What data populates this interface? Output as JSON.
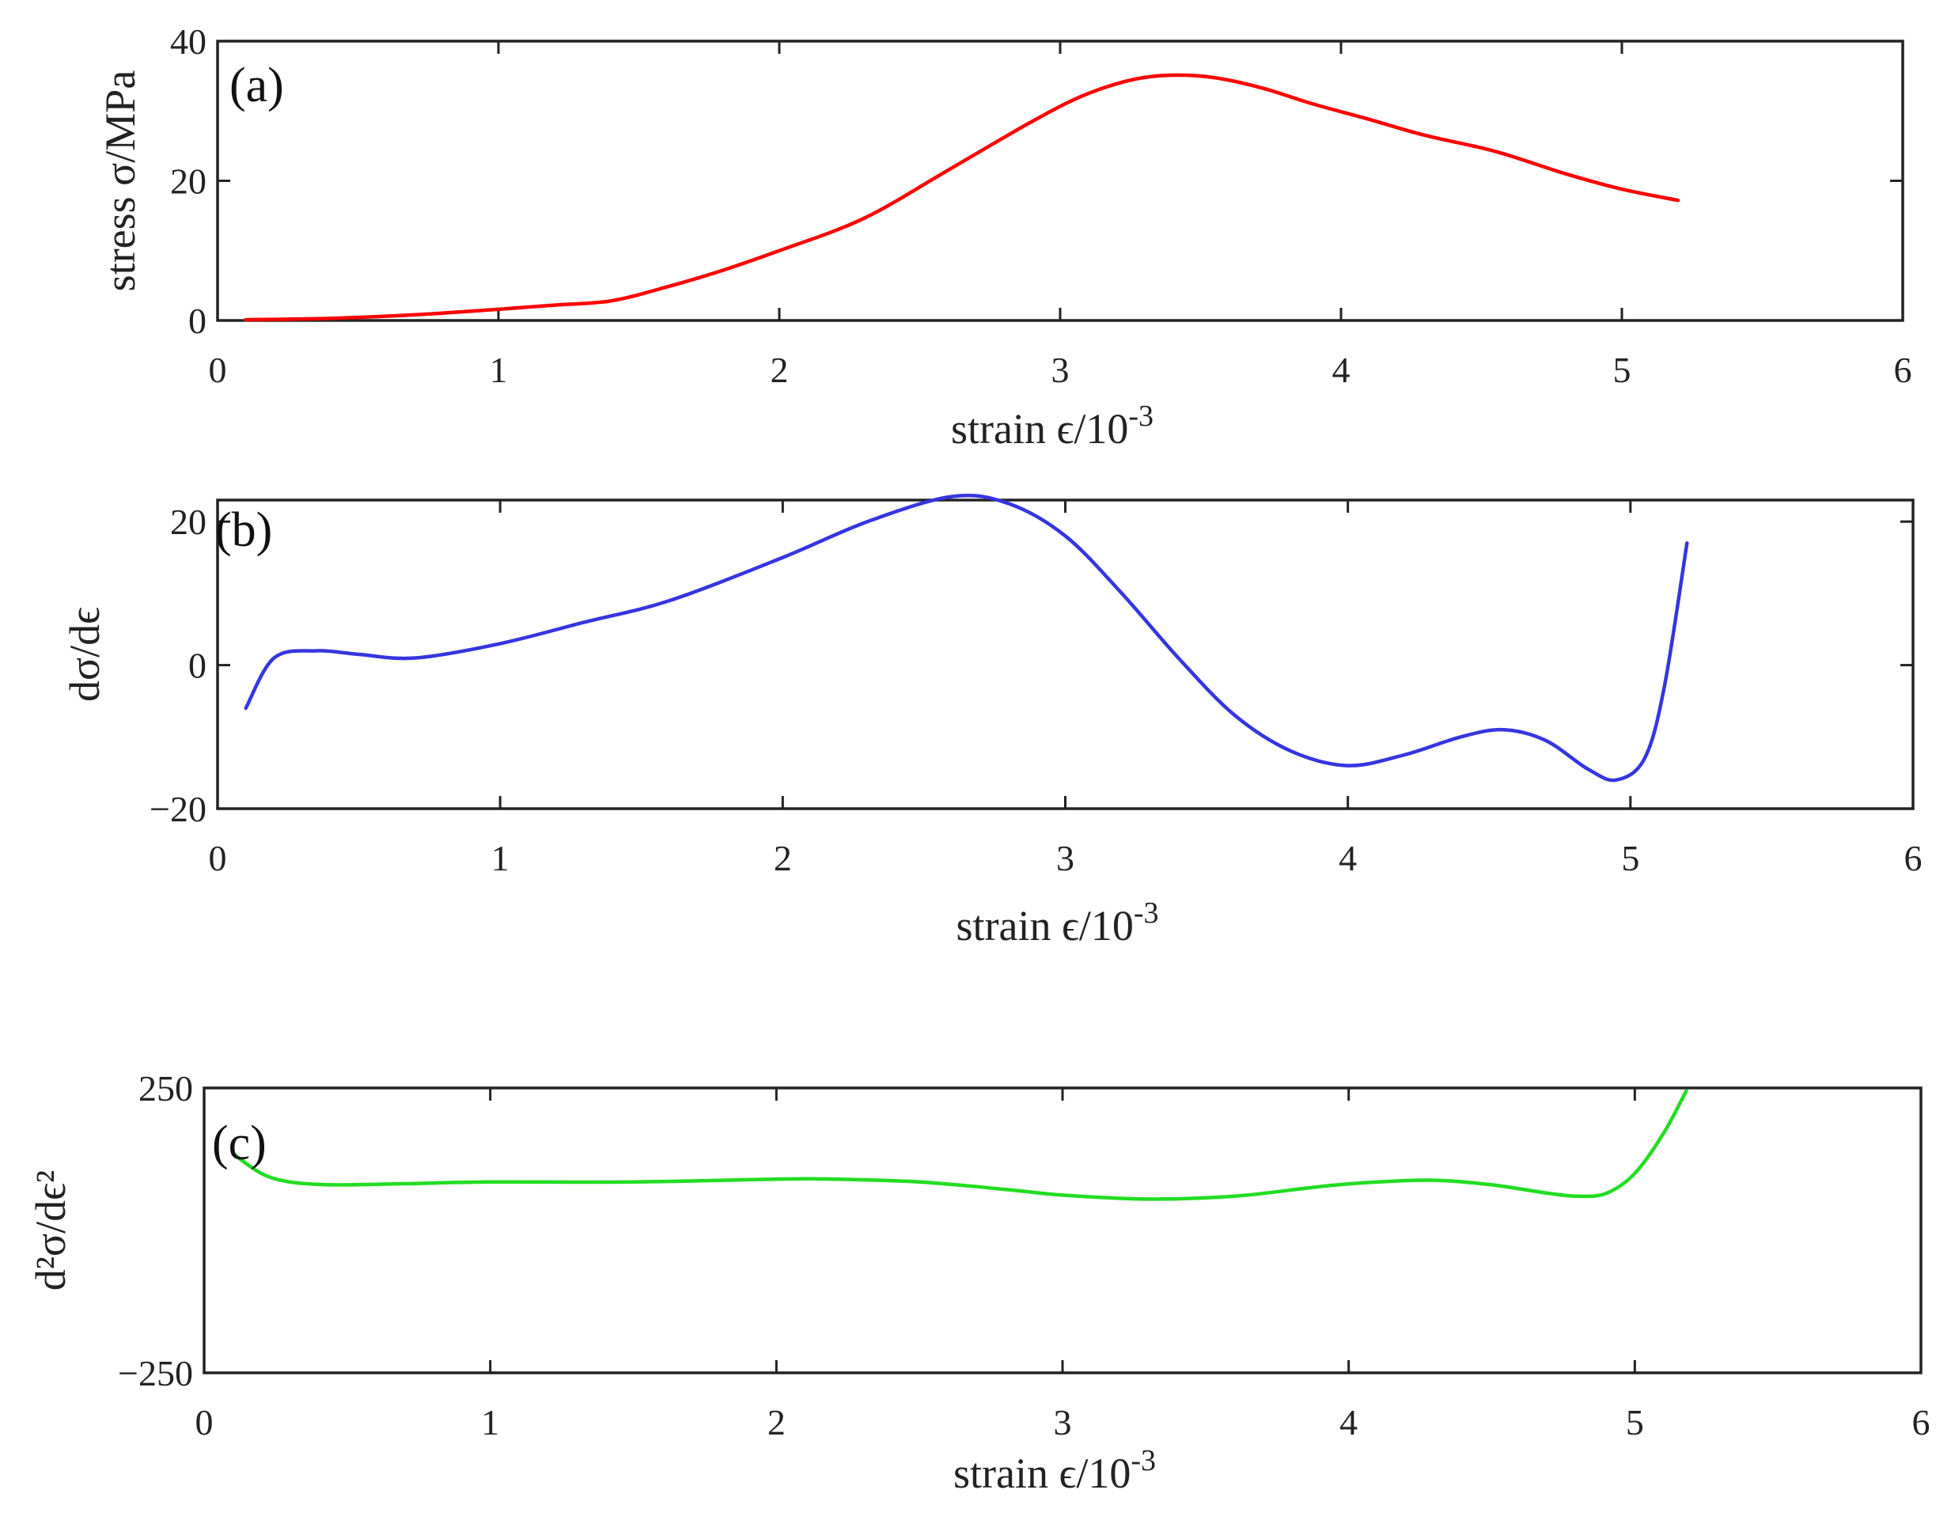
{
  "chart_data": [
    {
      "type": "line",
      "panel_label": "(a)",
      "xlabel": "strain ϵ/10",
      "xlabel_exponent": "-3",
      "ylabel": "stress σ/MPa",
      "xlim": [
        0,
        6
      ],
      "ylim": [
        0,
        40
      ],
      "xticks": [
        0,
        1,
        2,
        3,
        4,
        5,
        6
      ],
      "xtick_labels": [
        "0",
        "1",
        "2",
        "3",
        "4",
        "5",
        "6"
      ],
      "yticks": [
        0,
        20,
        40
      ],
      "ytick_labels": [
        "0",
        "20",
        "40"
      ],
      "grid": false,
      "series": [
        {
          "color": "#ff0000",
          "x": [
            0.1,
            0.4,
            0.7,
            1.0,
            1.2,
            1.4,
            1.6,
            1.8,
            2.0,
            2.3,
            2.6,
            2.9,
            3.1,
            3.3,
            3.5,
            3.7,
            3.9,
            4.1,
            4.3,
            4.55,
            4.8,
            5.0,
            5.2
          ],
          "y": [
            0.1,
            0.3,
            0.8,
            1.6,
            2.2,
            2.8,
            4.8,
            7.2,
            10.0,
            14.6,
            21.5,
            28.5,
            32.5,
            34.8,
            35.0,
            33.5,
            31.0,
            28.8,
            26.5,
            24.2,
            21.0,
            18.8,
            17.2
          ]
        }
      ]
    },
    {
      "type": "line",
      "panel_label": "(b)",
      "xlabel": "strain ϵ/10",
      "xlabel_exponent": "-3",
      "ylabel": "dσ/dϵ",
      "xlim": [
        0,
        6
      ],
      "ylim": [
        -20,
        23
      ],
      "xticks": [
        0,
        1,
        2,
        3,
        4,
        5,
        6
      ],
      "xtick_labels": [
        "0",
        "1",
        "2",
        "3",
        "4",
        "5",
        "6"
      ],
      "yticks": [
        -20,
        0,
        20
      ],
      "ytick_labels": [
        "−20",
        "0",
        "20"
      ],
      "grid": false,
      "series": [
        {
          "color": "#3535e0",
          "x": [
            0.1,
            0.2,
            0.35,
            0.5,
            0.7,
            1.0,
            1.3,
            1.6,
            2.0,
            2.3,
            2.6,
            2.8,
            3.0,
            3.2,
            3.4,
            3.6,
            3.8,
            4.0,
            4.2,
            4.4,
            4.55,
            4.7,
            4.85,
            4.95,
            5.05,
            5.12,
            5.2
          ],
          "y": [
            -6.0,
            1.0,
            2.0,
            1.5,
            1.0,
            3.0,
            6.0,
            9.0,
            15.0,
            20.0,
            23.5,
            22.5,
            18.0,
            10.0,
            1.0,
            -7.0,
            -12.0,
            -14.0,
            -12.5,
            -10.0,
            -9.0,
            -10.5,
            -14.5,
            -16.0,
            -13.0,
            -3.0,
            17.0
          ]
        }
      ]
    },
    {
      "type": "line",
      "panel_label": "(c)",
      "xlabel": "strain ϵ/10",
      "xlabel_exponent": "-3",
      "ylabel": "d²σ/dϵ²",
      "xlim": [
        0,
        6
      ],
      "ylim": [
        -250,
        250
      ],
      "xticks": [
        0,
        1,
        2,
        3,
        4,
        5,
        6
      ],
      "xtick_labels": [
        "0",
        "1",
        "2",
        "3",
        "4",
        "5",
        "6"
      ],
      "yticks": [
        -250,
        250
      ],
      "ytick_labels": [
        "−250",
        "250"
      ],
      "grid": false,
      "series": [
        {
          "color": "#22dd22",
          "x": [
            0.1,
            0.2,
            0.3,
            0.45,
            0.7,
            1.0,
            1.5,
            2.0,
            2.2,
            2.5,
            2.8,
            3.0,
            3.3,
            3.6,
            3.9,
            4.1,
            4.3,
            4.5,
            4.7,
            4.8,
            4.9,
            5.0,
            5.1,
            5.18
          ],
          "y": [
            135,
            100,
            85,
            80,
            82,
            85,
            85,
            90,
            90,
            85,
            72,
            62,
            55,
            60,
            77,
            85,
            88,
            80,
            65,
            60,
            65,
            100,
            170,
            245
          ]
        }
      ]
    }
  ]
}
